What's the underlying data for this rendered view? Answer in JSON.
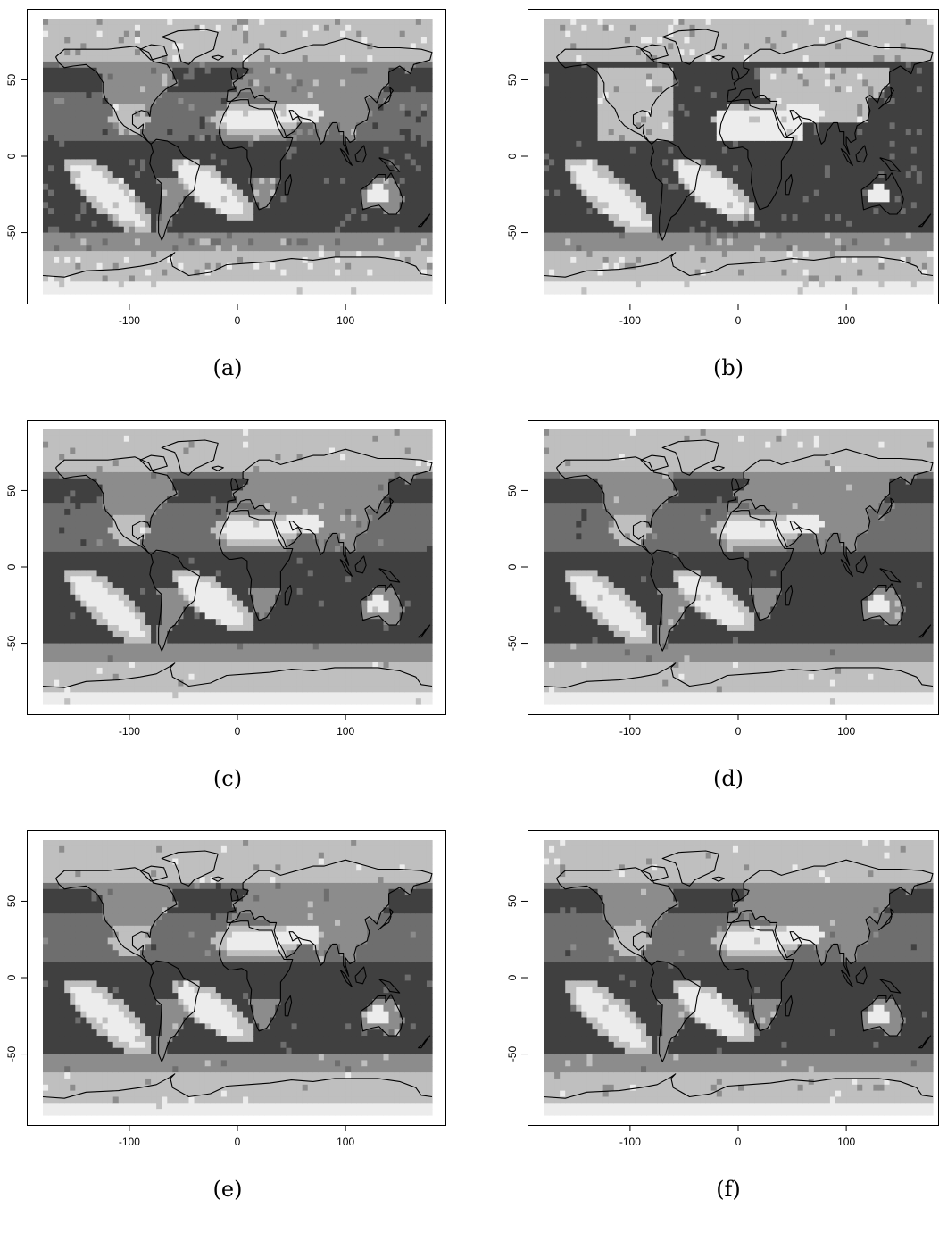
{
  "panels": [
    {
      "label": "(a)",
      "variant": 0
    },
    {
      "label": "(b)",
      "variant": 1
    },
    {
      "label": "(c)",
      "variant": 2
    },
    {
      "label": "(d)",
      "variant": 3
    },
    {
      "label": "(e)",
      "variant": 4
    },
    {
      "label": "(f)",
      "variant": 5
    }
  ],
  "axes": {
    "x_ticks": [
      -100,
      0,
      100
    ],
    "y_ticks": [
      50,
      0,
      -50
    ],
    "x_range": [
      -180,
      180
    ],
    "y_range": [
      -90,
      90
    ]
  },
  "palette": {
    "darkest": "#404040",
    "dark": "#6e6e6e",
    "mid": "#8c8c8c",
    "light": "#bfbfbf",
    "lightest": "#ececec",
    "coast": "#000000"
  }
}
